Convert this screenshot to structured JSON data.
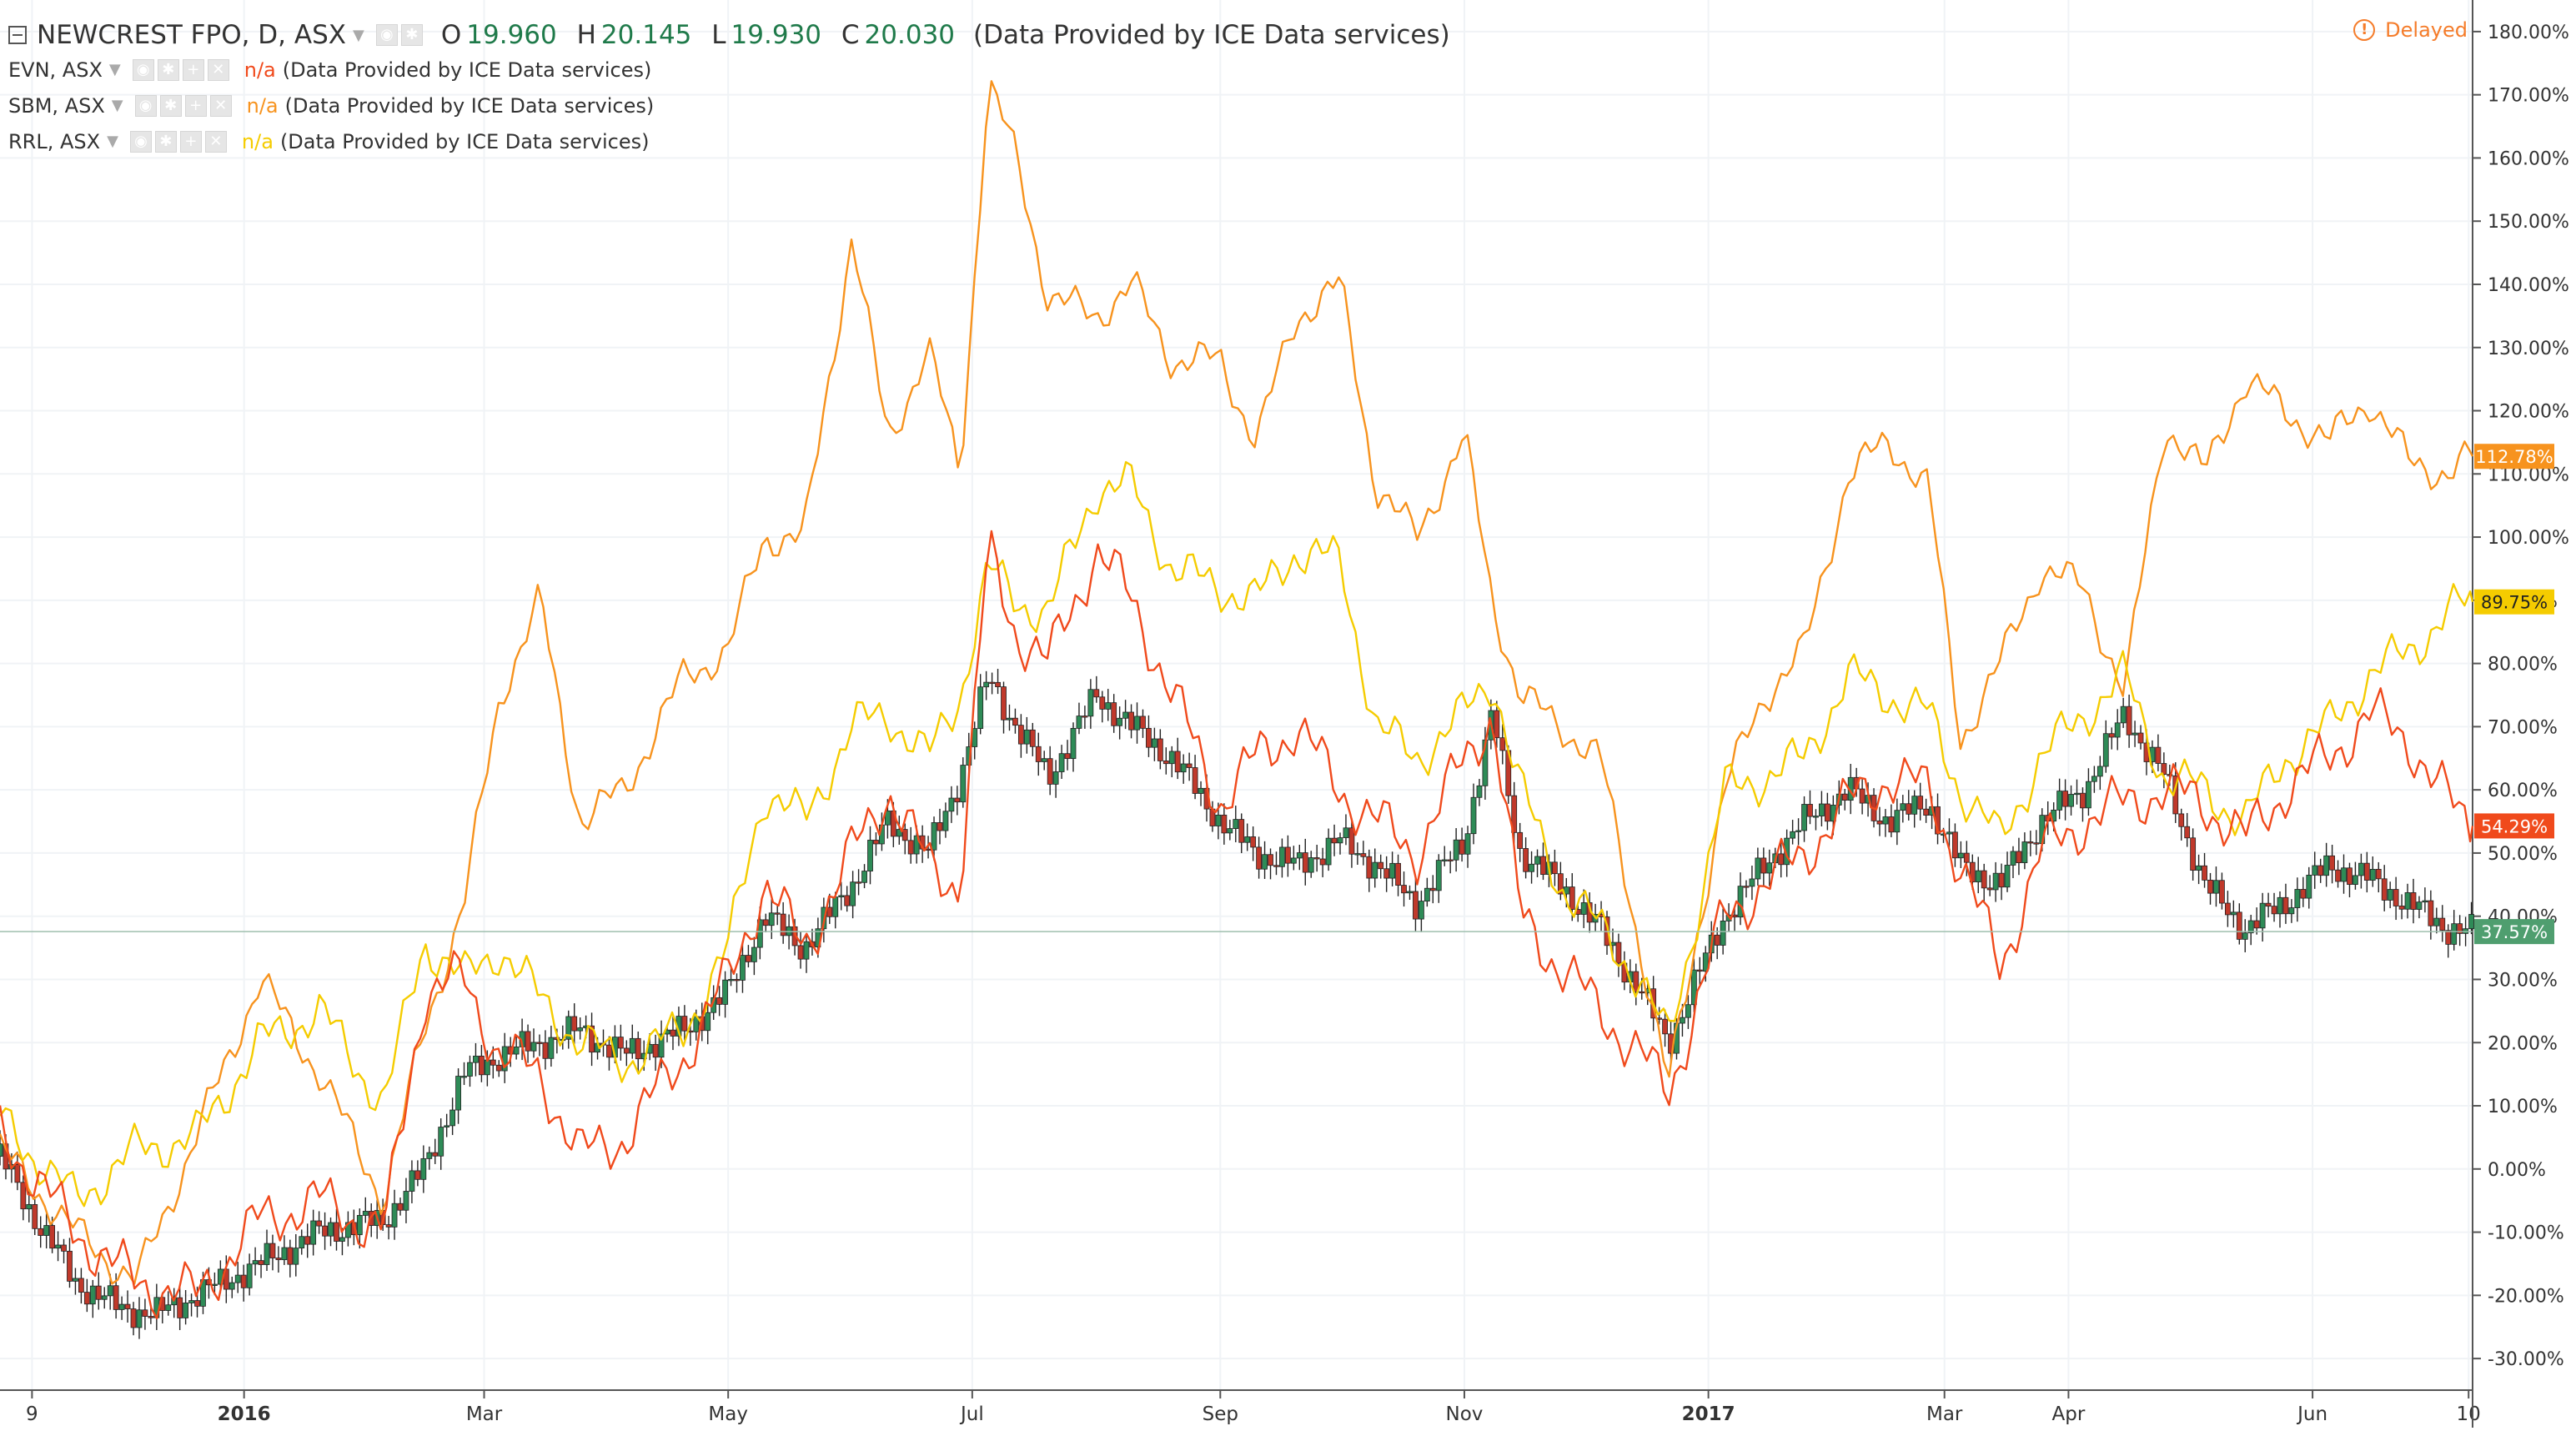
{
  "header": {
    "title": "NEWCREST FPO, D, ASX",
    "ohlc": [
      {
        "k": "O",
        "v": "19.960"
      },
      {
        "k": "H",
        "v": "20.145"
      },
      {
        "k": "L",
        "v": "19.930"
      },
      {
        "k": "C",
        "v": "20.030"
      }
    ],
    "provider": "(Data Provided by ICE Data services)",
    "delayed_label": "Delayed",
    "delayed_icon": "!"
  },
  "overlays": [
    {
      "symbol": "EVN, ASX",
      "value": "n/a",
      "provider": "(Data Provided by ICE Data services)",
      "color": "#f04a1c"
    },
    {
      "symbol": "SBM, ASX",
      "value": "n/a",
      "provider": "(Data Provided by ICE Data services)",
      "color": "#f7931e"
    },
    {
      "symbol": "RRL, ASX",
      "value": "n/a",
      "provider": "(Data Provided by ICE Data services)",
      "color": "#f5cc00"
    }
  ],
  "chart_data": {
    "type": "line",
    "title": "NEWCREST FPO, D, ASX",
    "ylim": [
      -35,
      185
    ],
    "yticks": [
      -30,
      -20,
      -10,
      0,
      10,
      20,
      30,
      40,
      50,
      60,
      70,
      80,
      90,
      100,
      110,
      120,
      130,
      140,
      150,
      160,
      170,
      180
    ],
    "ytick_labels": [
      "-30.00%",
      "-20.00%",
      "-10.00%",
      "0.00%",
      "10.00%",
      "20.00%",
      "30.00%",
      "40.00%",
      "50.00%",
      "60.00%",
      "70.00%",
      "80.00%",
      "90.00%",
      "100.00%",
      "110.00%",
      "120.00%",
      "130.00%",
      "140.00%",
      "150.00%",
      "160.00%",
      "170.00%",
      "180.00%"
    ],
    "xlim": [
      "2015-11-01",
      "2017-07-11"
    ],
    "xticks": [
      {
        "date": "2015-11-09",
        "label": "9",
        "bold": false
      },
      {
        "date": "2016-01-01",
        "label": "2016",
        "bold": true
      },
      {
        "date": "2016-03-01",
        "label": "Mar",
        "bold": false
      },
      {
        "date": "2016-05-01",
        "label": "May",
        "bold": false
      },
      {
        "date": "2016-07-01",
        "label": "Jul",
        "bold": false
      },
      {
        "date": "2016-09-01",
        "label": "Sep",
        "bold": false
      },
      {
        "date": "2016-11-01",
        "label": "Nov",
        "bold": false
      },
      {
        "date": "2017-01-01",
        "label": "2017",
        "bold": true
      },
      {
        "date": "2017-03-01",
        "label": "Mar",
        "bold": false
      },
      {
        "date": "2017-04-01",
        "label": "Apr",
        "bold": false
      },
      {
        "date": "2017-06-01",
        "label": "Jun",
        "bold": false
      },
      {
        "date": "2017-07-10",
        "label": "10",
        "bold": false
      }
    ],
    "grid": true,
    "series": [
      {
        "name": "SBM, ASX",
        "color": "#f7931e",
        "last_label": "112.78%",
        "x": [
          "2015-11-01",
          "2015-11-20",
          "2015-12-05",
          "2015-12-20",
          "2016-01-05",
          "2016-01-20",
          "2016-02-05",
          "2016-02-15",
          "2016-02-25",
          "2016-03-05",
          "2016-03-15",
          "2016-03-25",
          "2016-04-05",
          "2016-04-20",
          "2016-05-01",
          "2016-05-10",
          "2016-05-20",
          "2016-06-01",
          "2016-06-10",
          "2016-06-20",
          "2016-06-28",
          "2016-07-05",
          "2016-07-12",
          "2016-07-20",
          "2016-08-01",
          "2016-08-10",
          "2016-08-20",
          "2016-09-01",
          "2016-09-10",
          "2016-09-20",
          "2016-10-01",
          "2016-10-10",
          "2016-10-20",
          "2016-11-01",
          "2016-11-08",
          "2016-11-15",
          "2016-11-25",
          "2016-12-05",
          "2016-12-15",
          "2016-12-22",
          "2017-01-05",
          "2017-01-15",
          "2017-01-25",
          "2017-02-05",
          "2017-02-15",
          "2017-02-25",
          "2017-03-05",
          "2017-03-15",
          "2017-03-25",
          "2017-04-05",
          "2017-04-15",
          "2017-04-25",
          "2017-05-05",
          "2017-05-15",
          "2017-05-25",
          "2017-06-05",
          "2017-06-15",
          "2017-06-25",
          "2017-07-05",
          "2017-07-11"
        ],
        "y": [
          3,
          -10,
          -18,
          5,
          30,
          15,
          -5,
          22,
          42,
          75,
          90,
          55,
          60,
          78,
          82,
          100,
          100,
          148,
          115,
          130,
          110,
          172,
          160,
          138,
          135,
          140,
          128,
          128,
          115,
          135,
          140,
          108,
          100,
          116,
          90,
          75,
          70,
          65,
          35,
          13,
          60,
          75,
          82,
          110,
          115,
          108,
          68,
          80,
          95,
          92,
          75,
          118,
          110,
          125,
          120,
          115,
          122,
          112,
          110,
          112.78
        ]
      },
      {
        "name": "RRL, ASX",
        "color": "#f5cc00",
        "last_label": "89.75%",
        "x": [
          "2015-11-01",
          "2015-11-20",
          "2015-12-05",
          "2015-12-20",
          "2016-01-05",
          "2016-01-20",
          "2016-02-05",
          "2016-02-15",
          "2016-02-25",
          "2016-03-05",
          "2016-03-15",
          "2016-03-25",
          "2016-04-05",
          "2016-04-20",
          "2016-05-01",
          "2016-05-10",
          "2016-05-20",
          "2016-06-01",
          "2016-06-10",
          "2016-06-20",
          "2016-06-28",
          "2016-07-05",
          "2016-07-12",
          "2016-07-20",
          "2016-08-01",
          "2016-08-10",
          "2016-08-20",
          "2016-09-01",
          "2016-09-10",
          "2016-09-20",
          "2016-10-01",
          "2016-10-10",
          "2016-10-20",
          "2016-11-01",
          "2016-11-08",
          "2016-11-15",
          "2016-11-25",
          "2016-12-05",
          "2016-12-15",
          "2016-12-22",
          "2017-01-05",
          "2017-01-15",
          "2017-01-25",
          "2017-02-05",
          "2017-02-15",
          "2017-02-25",
          "2017-03-05",
          "2017-03-15",
          "2017-03-25",
          "2017-04-05",
          "2017-04-15",
          "2017-04-25",
          "2017-05-05",
          "2017-05-15",
          "2017-05-25",
          "2017-06-05",
          "2017-06-15",
          "2017-06-25",
          "2017-07-05",
          "2017-07-11"
        ],
        "y": [
          8,
          -5,
          3,
          5,
          20,
          25,
          10,
          36,
          30,
          35,
          27,
          20,
          17,
          22,
          35,
          60,
          55,
          70,
          72,
          65,
          75,
          95,
          90,
          88,
          108,
          108,
          95,
          92,
          90,
          98,
          96,
          70,
          65,
          72,
          78,
          60,
          45,
          38,
          30,
          20,
          60,
          62,
          65,
          78,
          75,
          72,
          60,
          52,
          65,
          72,
          78,
          62,
          60,
          55,
          65,
          70,
          78,
          82,
          88,
          89.75
        ]
      },
      {
        "name": "EVN, ASX",
        "color": "#f04a1c",
        "last_label": "54.29%",
        "x": [
          "2015-11-01",
          "2015-11-20",
          "2015-12-05",
          "2015-12-20",
          "2016-01-05",
          "2016-01-20",
          "2016-02-05",
          "2016-02-15",
          "2016-02-25",
          "2016-03-05",
          "2016-03-15",
          "2016-03-25",
          "2016-04-05",
          "2016-04-20",
          "2016-05-01",
          "2016-05-10",
          "2016-05-20",
          "2016-06-01",
          "2016-06-10",
          "2016-06-20",
          "2016-06-28",
          "2016-07-05",
          "2016-07-12",
          "2016-07-20",
          "2016-08-01",
          "2016-08-10",
          "2016-08-20",
          "2016-09-01",
          "2016-09-10",
          "2016-09-20",
          "2016-10-01",
          "2016-10-10",
          "2016-10-20",
          "2016-11-01",
          "2016-11-08",
          "2016-11-15",
          "2016-11-25",
          "2016-12-05",
          "2016-12-15",
          "2016-12-22",
          "2017-01-05",
          "2017-01-15",
          "2017-01-25",
          "2017-02-05",
          "2017-02-15",
          "2017-02-25",
          "2017-03-05",
          "2017-03-15",
          "2017-03-25",
          "2017-04-05",
          "2017-04-15",
          "2017-04-25",
          "2017-05-05",
          "2017-05-15",
          "2017-05-25",
          "2017-06-05",
          "2017-06-15",
          "2017-06-25",
          "2017-07-05",
          "2017-07-11"
        ],
        "y": [
          6,
          -10,
          -18,
          -20,
          -8,
          -5,
          -10,
          28,
          30,
          18,
          15,
          2,
          5,
          18,
          30,
          45,
          35,
          50,
          60,
          48,
          45,
          98,
          85,
          80,
          98,
          90,
          75,
          58,
          65,
          70,
          60,
          55,
          50,
          65,
          72,
          40,
          32,
          25,
          18,
          12,
          40,
          45,
          50,
          58,
          62,
          60,
          48,
          32,
          50,
          55,
          58,
          60,
          58,
          52,
          60,
          65,
          72,
          68,
          58,
          54.29
        ]
      },
      {
        "name": "NEWCREST FPO, D, ASX",
        "color": "#1f7a4a",
        "last_label": "37.57%",
        "x": [
          "2015-11-01",
          "2015-11-10",
          "2015-11-20",
          "2015-12-01",
          "2015-12-10",
          "2015-12-20",
          "2016-01-05",
          "2016-01-20",
          "2016-02-05",
          "2016-02-15",
          "2016-02-25",
          "2016-03-05",
          "2016-03-15",
          "2016-03-25",
          "2016-04-05",
          "2016-04-20",
          "2016-05-01",
          "2016-05-10",
          "2016-05-20",
          "2016-06-01",
          "2016-06-10",
          "2016-06-20",
          "2016-06-28",
          "2016-07-05",
          "2016-07-12",
          "2016-07-20",
          "2016-08-01",
          "2016-08-10",
          "2016-08-20",
          "2016-09-01",
          "2016-09-10",
          "2016-09-20",
          "2016-10-01",
          "2016-10-10",
          "2016-10-20",
          "2016-11-01",
          "2016-11-08",
          "2016-11-15",
          "2016-11-25",
          "2016-12-05",
          "2016-12-15",
          "2016-12-22",
          "2017-01-05",
          "2017-01-15",
          "2017-01-25",
          "2017-02-05",
          "2017-02-15",
          "2017-02-25",
          "2017-03-05",
          "2017-03-15",
          "2017-03-25",
          "2017-04-05",
          "2017-04-15",
          "2017-04-25",
          "2017-05-05",
          "2017-05-15",
          "2017-05-25",
          "2017-06-05",
          "2017-06-15",
          "2017-06-25",
          "2017-07-05",
          "2017-07-11"
        ],
        "y": [
          2,
          -8,
          -18,
          -22,
          -23,
          -20,
          -15,
          -10,
          -8,
          0,
          15,
          18,
          20,
          22,
          18,
          22,
          28,
          40,
          35,
          45,
          55,
          50,
          62,
          78,
          70,
          62,
          75,
          70,
          65,
          55,
          50,
          48,
          52,
          48,
          42,
          52,
          72,
          50,
          45,
          38,
          28,
          20,
          40,
          48,
          55,
          60,
          55,
          58,
          48,
          45,
          55,
          60,
          72,
          62,
          45,
          38,
          42,
          48,
          46,
          42,
          38,
          37.57
        ]
      }
    ]
  }
}
